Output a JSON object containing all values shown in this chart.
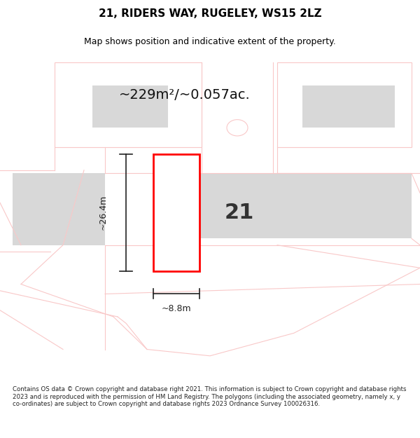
{
  "title": "21, RIDERS WAY, RUGELEY, WS15 2LZ",
  "subtitle": "Map shows position and indicative extent of the property.",
  "area_text": "~229m²/~0.057ac.",
  "number_label": "21",
  "dim_height": "~26.4m",
  "dim_width": "~8.8m",
  "footer": "Contains OS data © Crown copyright and database right 2021. This information is subject to Crown copyright and database rights 2023 and is reproduced with the permission of HM Land Registry. The polygons (including the associated geometry, namely x, y co-ordinates) are subject to Crown copyright and database rights 2023 Ordnance Survey 100026316.",
  "bg_color": "#ffffff",
  "map_bg": "#ffffff",
  "plot_color": "#f5f5f5",
  "road_color": "#f9c8c8",
  "red_border": "#ff0000",
  "dark_line": "#222222",
  "gray_block": "#d8d8d8"
}
